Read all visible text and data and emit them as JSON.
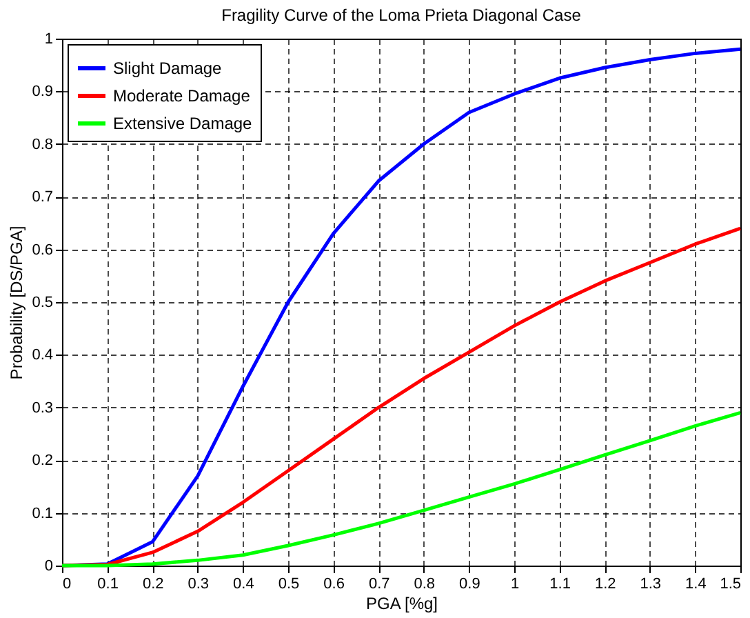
{
  "chart_data": {
    "type": "line",
    "title": "Fragility Curve of the Loma Prieta Diagonal  Case",
    "xlabel": "PGA [%g]",
    "ylabel": "Probability [DS/PGA]",
    "x": [
      0,
      0.1,
      0.2,
      0.3,
      0.4,
      0.5,
      0.6,
      0.7,
      0.8,
      0.9,
      1.0,
      1.1,
      1.2,
      1.3,
      1.4,
      1.5
    ],
    "series": [
      {
        "name": "Slight Damage",
        "color": "#0000ff",
        "values": [
          0,
          0.003,
          0.045,
          0.17,
          0.34,
          0.5,
          0.63,
          0.73,
          0.8,
          0.86,
          0.895,
          0.925,
          0.945,
          0.96,
          0.972,
          0.98
        ]
      },
      {
        "name": "Moderate Damage",
        "color": "#ff0000",
        "values": [
          0,
          0.002,
          0.025,
          0.065,
          0.12,
          0.18,
          0.24,
          0.3,
          0.355,
          0.405,
          0.455,
          0.5,
          0.54,
          0.575,
          0.61,
          0.64
        ]
      },
      {
        "name": "Extensive Damage",
        "color": "#00ff00",
        "values": [
          0,
          0,
          0.003,
          0.01,
          0.02,
          0.038,
          0.058,
          0.08,
          0.105,
          0.13,
          0.155,
          0.182,
          0.21,
          0.237,
          0.265,
          0.29
        ]
      }
    ],
    "xlim": [
      0,
      1.5
    ],
    "xticks": [
      0,
      0.1,
      0.2,
      0.3,
      0.4,
      0.5,
      0.6,
      0.7,
      0.8,
      0.9,
      1,
      1.1,
      1.2,
      1.3,
      1.4,
      1.5
    ],
    "ylim": [
      0,
      1
    ],
    "yticks": [
      0,
      0.1,
      0.2,
      0.3,
      0.4,
      0.5,
      0.6,
      0.7,
      0.8,
      0.9,
      1
    ],
    "grid": true,
    "legend": "top left",
    "marker": "none",
    "line_style": "solid"
  }
}
